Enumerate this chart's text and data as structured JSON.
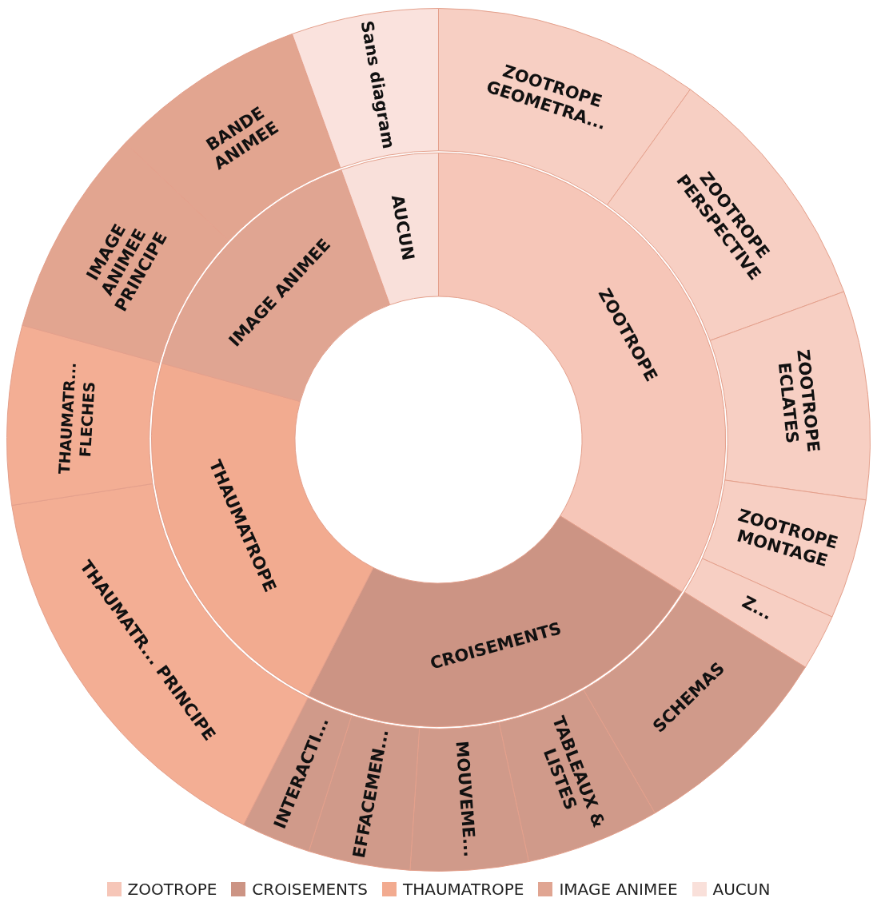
{
  "chart_data": [
    {
      "type": "donut",
      "legend": "bottom",
      "categories": [
        "ZOOTROPE",
        "CROISEMENTS",
        "THAUMATROPE",
        "IMAGE ANIMEE",
        "AUCUN"
      ],
      "colors": [
        "#f6c6b8",
        "#cc9484",
        "#f2ab90",
        "#e0a592",
        "#f9e0da"
      ],
      "values": [
        33.9,
        23.6,
        21.8,
        15.2,
        5.5
      ]
    },
    {
      "type": "donut",
      "categories": [
        "ZOOTROPE GEOMETRA...",
        "ZOOTROPE PERSPECTIVE",
        "ZOOTROPE ECLATES",
        "ZOOTROPE MONTAGE",
        "Z...",
        "SCHEMAS",
        "TABLEAUX & LISTES",
        "MOUVEME...",
        "EFFACEMEN...",
        "INTERACTI...",
        "THAUMATR... PRINCIPE",
        "THAUMATR... FLECHES",
        "IMAGE ANIMEE PRINCIPE",
        "BANDE ANIMEE",
        "Sans diagram"
      ],
      "colors": [
        "#f7cfc3",
        "#f7cfc3",
        "#f7cfc3",
        "#f7cfc3",
        "#f7cfc3",
        "#d09a8a",
        "#d09a8a",
        "#d09a8a",
        "#d09a8a",
        "#d09a8a",
        "#f3ae94",
        "#f3ae94",
        "#e2a590",
        "#e2a590",
        "#fae2dd"
      ],
      "values": [
        9.9,
        9.5,
        7.8,
        4.5,
        2.1,
        7.8,
        5.0,
        4.4,
        3.8,
        2.6,
        15.1,
        6.7,
        7.8,
        7.4,
        5.5
      ]
    }
  ]
}
